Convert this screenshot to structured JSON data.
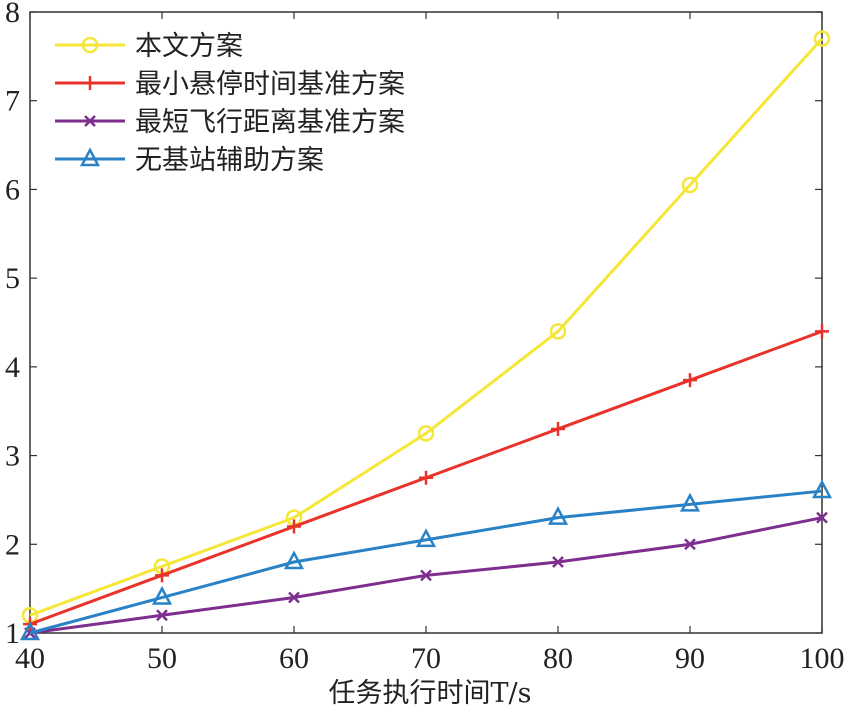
{
  "chart_data": {
    "type": "line",
    "xlabel": "任务执行时间T/s",
    "ylabel": "",
    "x": [
      40,
      50,
      60,
      70,
      80,
      90,
      100
    ],
    "xlim": [
      40,
      100
    ],
    "ylim": [
      1,
      8
    ],
    "xticks": [
      "40",
      "50",
      "60",
      "70",
      "80",
      "90",
      "100"
    ],
    "yticks": [
      "1",
      "2",
      "3",
      "4",
      "5",
      "6",
      "7",
      "8"
    ],
    "grid": false,
    "legend_position": "top-left",
    "series": [
      {
        "name": "本文方案",
        "color": "#f5e637",
        "marker": "circle",
        "values": [
          1.2,
          1.75,
          2.3,
          3.25,
          4.4,
          6.05,
          7.7
        ]
      },
      {
        "name": "最小悬停时间基准方案",
        "color": "#e8322a",
        "marker": "plus",
        "values": [
          1.1,
          1.65,
          2.2,
          2.75,
          3.3,
          3.85,
          4.4
        ]
      },
      {
        "name": "最短飞行距离基准方案",
        "color": "#7d2e8e",
        "marker": "x",
        "values": [
          1.0,
          1.2,
          1.4,
          1.65,
          1.8,
          2.0,
          2.3
        ]
      },
      {
        "name": "无基站辅助方案",
        "color": "#2a82c6",
        "marker": "triangle",
        "values": [
          1.0,
          1.4,
          1.8,
          2.05,
          2.3,
          2.45,
          2.6
        ]
      }
    ]
  }
}
